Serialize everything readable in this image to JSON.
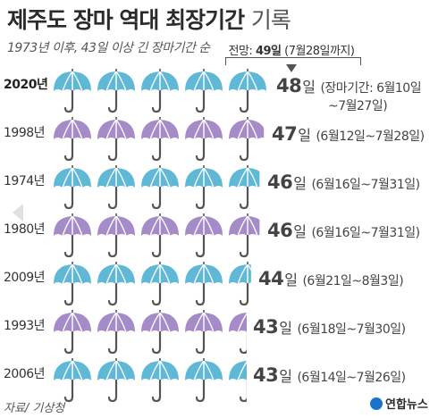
{
  "title_main": "제주도 장마 역대 최장기간",
  "title_light": "기록",
  "subtitle": "1973년 이후, 43일 이상 긴 장마기간 순",
  "forecast": {
    "prefix": "전망:",
    "days": "49일",
    "range": "(7월28일까지)"
  },
  "source": "자료/ 기상청",
  "logo": "연합뉴스",
  "colors": {
    "blue": "#5fb8d6",
    "purple": "#a58bc8",
    "handle": "#555555"
  },
  "chart_data": {
    "type": "pictograph",
    "unit_label": "일",
    "rows": [
      {
        "year": "2020년",
        "days": 48,
        "days_label": "48",
        "range": "(장마기간: 6월10일",
        "range2": "~7월27일)",
        "color": "blue",
        "highlight": true
      },
      {
        "year": "1998년",
        "days": 47,
        "days_label": "47",
        "range": "(6월12일~7월28일)",
        "color": "purple"
      },
      {
        "year": "1974년",
        "days": 46,
        "days_label": "46",
        "range": "(6월16일~7월31일)",
        "color": "blue"
      },
      {
        "year": "1980년",
        "days": 46,
        "days_label": "46",
        "range": "(6월16일~7월31일)",
        "color": "purple"
      },
      {
        "year": "2009년",
        "days": 44,
        "days_label": "44",
        "range": "(6월21일~8월3일)",
        "color": "blue"
      },
      {
        "year": "1993년",
        "days": 43,
        "days_label": "43",
        "range": "(6월18일~7월30일)",
        "color": "purple"
      },
      {
        "year": "2006년",
        "days": 43,
        "days_label": "43",
        "range": "(6월14일~7월26일)",
        "color": "blue"
      }
    ]
  }
}
